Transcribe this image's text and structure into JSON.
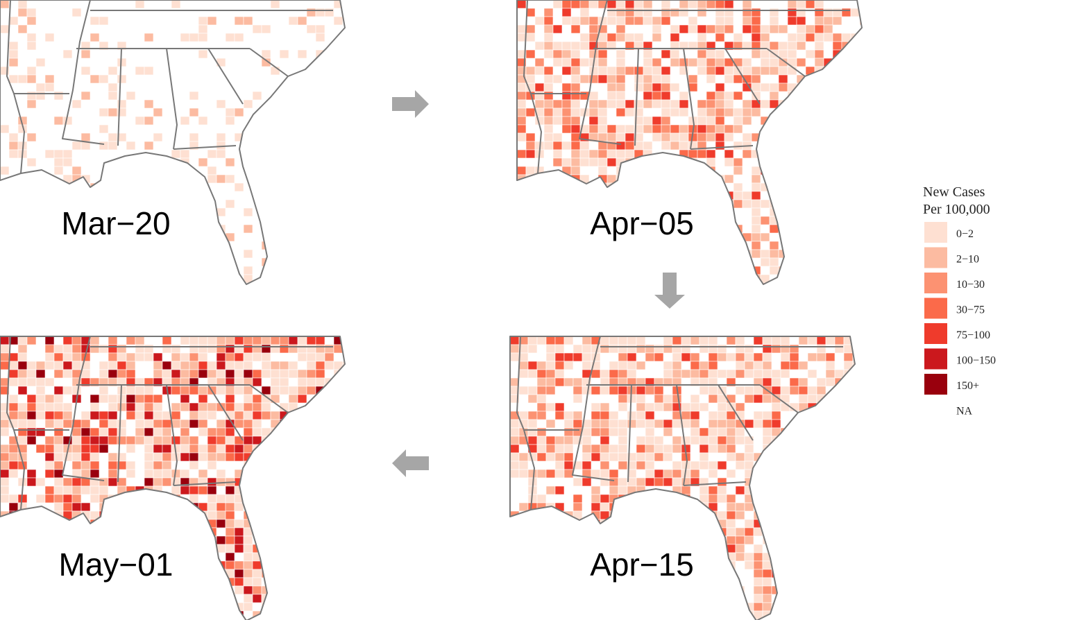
{
  "panels": [
    {
      "label": "Mar−20"
    },
    {
      "label": "Apr−05"
    },
    {
      "label": "Apr−15"
    },
    {
      "label": "May−01"
    }
  ],
  "legend": {
    "title": [
      "New Cases",
      "Per 100,000"
    ],
    "items": [
      {
        "label": "0−2",
        "color": "#fee0d2"
      },
      {
        "label": "2−10",
        "color": "#fcbba1"
      },
      {
        "label": "10−30",
        "color": "#fc9272"
      },
      {
        "label": "30−75",
        "color": "#fb6a4a"
      },
      {
        "label": "75−100",
        "color": "#ef3b2c"
      },
      {
        "label": "100−150",
        "color": "#cb181d"
      },
      {
        "label": "150+",
        "color": "#99000d"
      },
      {
        "label": "NA",
        "color": "#ffffff"
      }
    ]
  }
}
